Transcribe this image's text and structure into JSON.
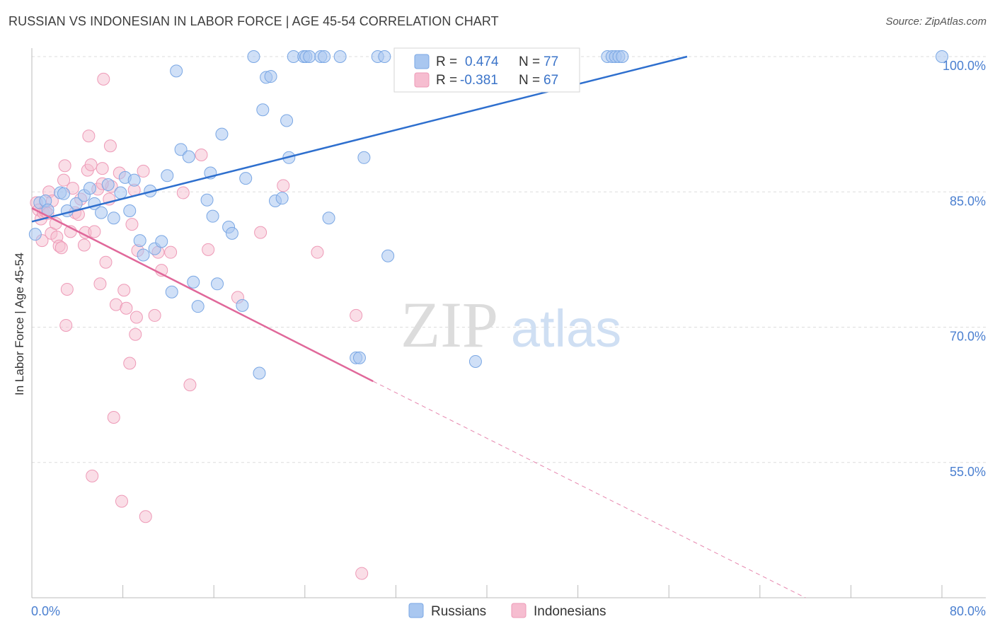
{
  "header": {
    "title": "RUSSIAN VS INDONESIAN IN LABOR FORCE | AGE 45-54 CORRELATION CHART",
    "source": "Source: ZipAtlas.com"
  },
  "watermark": {
    "zip": "ZIP",
    "atlas": "atlas"
  },
  "colors": {
    "russians_fill": "#a9c7f0",
    "russians_stroke": "#7aa7e4",
    "russians_line": "#2e6fce",
    "indonesians_fill": "#f6bdd0",
    "indonesians_stroke": "#ee9ab7",
    "indonesians_line": "#e0689a",
    "grid": "#dddddd",
    "tick_text": "#4a7fd0"
  },
  "chart_data": {
    "type": "scatter",
    "title": "RUSSIAN VS INDONESIAN IN LABOR FORCE | AGE 45-54 CORRELATION CHART",
    "xlabel": "",
    "ylabel": "In Labor Force | Age 45-54",
    "xlim": [
      0,
      80
    ],
    "ylim": [
      40,
      101.5
    ],
    "x_tick_labels": [
      "0.0%",
      "80.0%"
    ],
    "y_ticks": [
      55,
      70,
      85,
      100
    ],
    "y_tick_labels": [
      "55.0%",
      "70.0%",
      "85.0%",
      "100.0%"
    ],
    "legend": {
      "position": "top-center",
      "entries": [
        {
          "series": "Russians",
          "r_label": "R =",
          "r_value": "0.474",
          "n_label": "N =",
          "n_value": "77"
        },
        {
          "series": "Indonesians",
          "r_label": "R =",
          "r_value": "-0.381",
          "n_label": "N =",
          "n_value": "67"
        }
      ]
    },
    "bottom_legend": [
      "Russians",
      "Indonesians"
    ],
    "series": [
      {
        "name": "Russians",
        "trend": {
          "x0": 0,
          "y0": 81.7,
          "x1": 57.6,
          "y1": 100.0,
          "dashed_extension": false
        },
        "points": [
          [
            0.3,
            80.3
          ],
          [
            0.7,
            83.8
          ],
          [
            1.2,
            84.0
          ],
          [
            1.4,
            83.0
          ],
          [
            2.5,
            84.9
          ],
          [
            2.8,
            84.8
          ],
          [
            3.1,
            82.9
          ],
          [
            3.9,
            83.7
          ],
          [
            4.6,
            84.6
          ],
          [
            5.1,
            85.4
          ],
          [
            5.5,
            83.7
          ],
          [
            6.1,
            82.7
          ],
          [
            6.7,
            85.8
          ],
          [
            7.2,
            82.1
          ],
          [
            7.8,
            84.9
          ],
          [
            8.2,
            86.6
          ],
          [
            8.6,
            82.9
          ],
          [
            9.0,
            86.3
          ],
          [
            9.5,
            79.6
          ],
          [
            9.8,
            78.0
          ],
          [
            10.4,
            85.1
          ],
          [
            10.8,
            78.7
          ],
          [
            11.4,
            79.5
          ],
          [
            11.9,
            86.8
          ],
          [
            12.3,
            73.9
          ],
          [
            12.7,
            98.4
          ],
          [
            13.1,
            89.7
          ],
          [
            13.8,
            88.9
          ],
          [
            14.2,
            75.0
          ],
          [
            14.6,
            72.3
          ],
          [
            15.4,
            84.1
          ],
          [
            15.7,
            87.1
          ],
          [
            15.9,
            82.3
          ],
          [
            16.3,
            74.8
          ],
          [
            16.7,
            91.4
          ],
          [
            17.3,
            81.1
          ],
          [
            17.6,
            80.4
          ],
          [
            18.5,
            72.4
          ],
          [
            18.8,
            86.5
          ],
          [
            19.5,
            100.0
          ],
          [
            20.0,
            64.9
          ],
          [
            20.3,
            94.1
          ],
          [
            20.6,
            97.7
          ],
          [
            21.0,
            97.8
          ],
          [
            21.4,
            84.0
          ],
          [
            22.0,
            84.3
          ],
          [
            22.4,
            92.9
          ],
          [
            22.6,
            88.8
          ],
          [
            23.0,
            100.0
          ],
          [
            23.9,
            100.0
          ],
          [
            24.1,
            100.0
          ],
          [
            24.4,
            100.0
          ],
          [
            25.4,
            100.0
          ],
          [
            25.7,
            100.0
          ],
          [
            26.1,
            82.1
          ],
          [
            27.1,
            100.0
          ],
          [
            28.5,
            66.6
          ],
          [
            28.8,
            66.6
          ],
          [
            29.2,
            88.8
          ],
          [
            30.4,
            100.0
          ],
          [
            31.0,
            100.0
          ],
          [
            31.3,
            77.9
          ],
          [
            32.4,
            100.0
          ],
          [
            33.0,
            100.0
          ],
          [
            34.1,
            100.0
          ],
          [
            35.3,
            100.0
          ],
          [
            36.1,
            100.0
          ],
          [
            36.5,
            100.0
          ],
          [
            39.0,
            66.2
          ],
          [
            41.0,
            100.0
          ],
          [
            42.0,
            100.0
          ],
          [
            50.6,
            100.0
          ],
          [
            51.0,
            100.0
          ],
          [
            51.3,
            100.0
          ],
          [
            51.6,
            100.0
          ],
          [
            51.9,
            100.0
          ],
          [
            80.0,
            100.0
          ]
        ]
      },
      {
        "name": "Indonesians",
        "trend": {
          "x0": 0,
          "y0": 83.2,
          "x1": 30.0,
          "y1": 64.0,
          "dashed_to_x": 68.0,
          "dashed_to_y": 40.0
        },
        "points": [
          [
            0.4,
            83.8
          ],
          [
            0.6,
            83.0
          ],
          [
            0.8,
            82.0
          ],
          [
            0.9,
            79.6
          ],
          [
            1.0,
            82.7
          ],
          [
            1.2,
            82.8
          ],
          [
            1.4,
            82.6
          ],
          [
            1.5,
            85.0
          ],
          [
            1.7,
            80.4
          ],
          [
            1.8,
            84.0
          ],
          [
            2.1,
            81.5
          ],
          [
            2.2,
            80.0
          ],
          [
            2.4,
            79.0
          ],
          [
            2.6,
            78.8
          ],
          [
            2.8,
            86.3
          ],
          [
            2.9,
            87.9
          ],
          [
            3.0,
            70.2
          ],
          [
            3.1,
            74.2
          ],
          [
            3.4,
            80.6
          ],
          [
            3.6,
            85.4
          ],
          [
            3.8,
            82.7
          ],
          [
            4.1,
            82.5
          ],
          [
            4.3,
            84.2
          ],
          [
            4.6,
            79.1
          ],
          [
            4.7,
            80.5
          ],
          [
            4.9,
            87.4
          ],
          [
            5.0,
            91.2
          ],
          [
            5.2,
            88.0
          ],
          [
            5.3,
            53.5
          ],
          [
            5.5,
            80.6
          ],
          [
            5.8,
            85.3
          ],
          [
            6.0,
            74.8
          ],
          [
            6.2,
            87.6
          ],
          [
            6.3,
            97.5
          ],
          [
            6.5,
            77.2
          ],
          [
            6.8,
            84.2
          ],
          [
            6.9,
            90.1
          ],
          [
            7.0,
            85.6
          ],
          [
            7.2,
            60.0
          ],
          [
            7.4,
            72.5
          ],
          [
            7.7,
            87.1
          ],
          [
            7.9,
            50.7
          ],
          [
            8.1,
            74.1
          ],
          [
            8.3,
            72.1
          ],
          [
            8.6,
            66.0
          ],
          [
            8.8,
            81.4
          ],
          [
            9.0,
            85.2
          ],
          [
            9.1,
            69.2
          ],
          [
            9.2,
            71.1
          ],
          [
            9.3,
            78.5
          ],
          [
            9.8,
            87.3
          ],
          [
            10.0,
            49.0
          ],
          [
            10.8,
            71.3
          ],
          [
            11.1,
            78.3
          ],
          [
            11.4,
            76.3
          ],
          [
            12.2,
            78.3
          ],
          [
            13.9,
            63.6
          ],
          [
            14.9,
            89.1
          ],
          [
            15.5,
            78.6
          ],
          [
            18.1,
            73.3
          ],
          [
            20.1,
            80.5
          ],
          [
            22.1,
            85.7
          ],
          [
            25.1,
            78.3
          ],
          [
            28.5,
            71.3
          ],
          [
            29.0,
            42.7
          ],
          [
            13.3,
            84.9
          ],
          [
            6.2,
            85.9
          ]
        ]
      }
    ]
  }
}
